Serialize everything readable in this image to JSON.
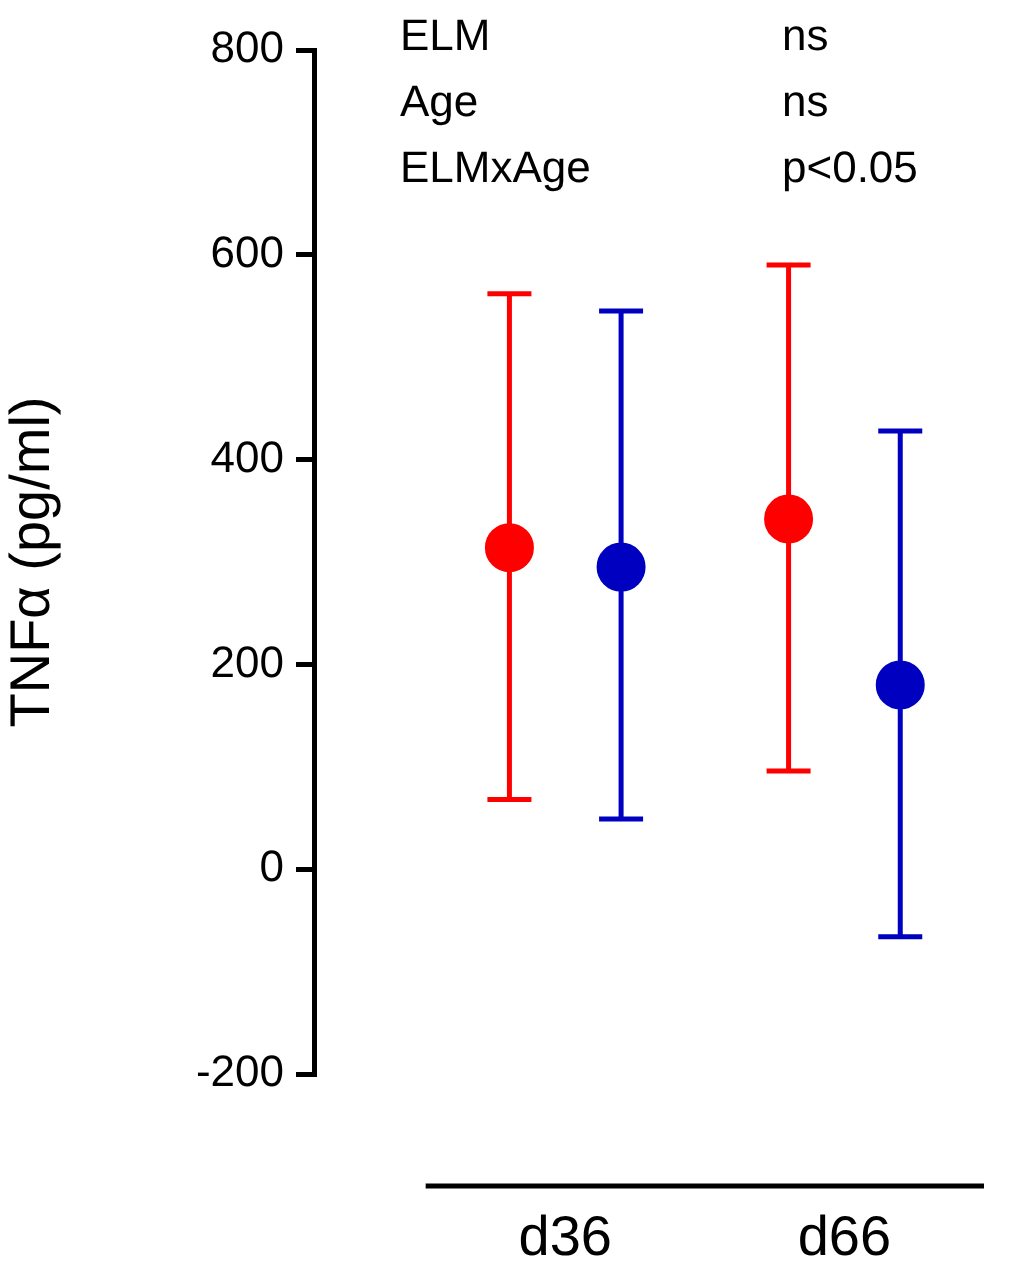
{
  "chart_data": {
    "type": "scatter",
    "ylabel": "TNFα (pg/ml)",
    "categories": [
      "d36",
      "d66"
    ],
    "series": [
      {
        "color": "#ff0000",
        "values": [
          314,
          342
        ],
        "errors": [
          [
            68,
            562
          ],
          [
            96,
            590
          ]
        ]
      },
      {
        "color": "#0000c0",
        "values": [
          295,
          180
        ],
        "errors": [
          [
            49,
            545
          ],
          [
            -66,
            428
          ]
        ]
      }
    ],
    "ylim": [
      -200,
      800
    ],
    "yticks": [
      -200,
      0,
      200,
      400,
      600,
      800
    ],
    "grid": false,
    "legend": false,
    "marker": "circle",
    "annotations": [
      "ELM",
      "ns",
      "Age",
      "ns",
      "ELMxAge",
      "p<0.05"
    ]
  }
}
